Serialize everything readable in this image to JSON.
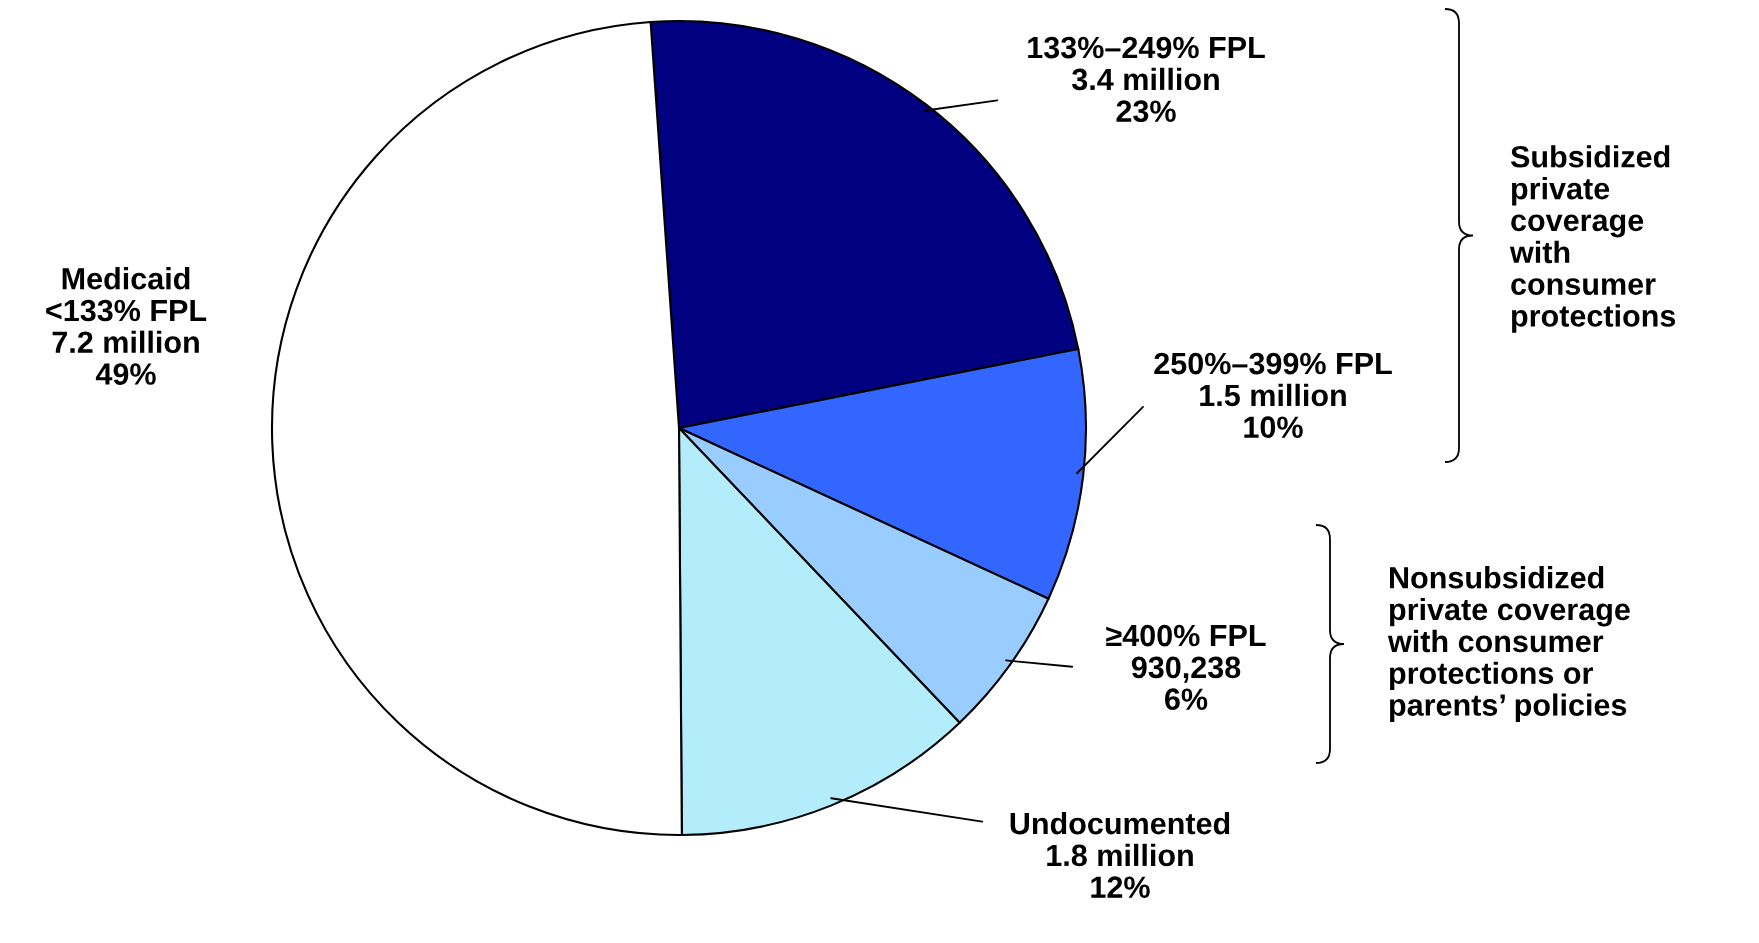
{
  "chart_data": {
    "type": "pie",
    "categories": [
      "133%–249% FPL",
      "250%–399% FPL",
      "≥400% FPL",
      "Undocumented",
      "Medicaid\n<133% FPL"
    ],
    "values": [
      23,
      10,
      6,
      12,
      49
    ],
    "colors": [
      "#000080",
      "#3366ff",
      "#99ccff",
      "#b3ecfa",
      "#ffffff"
    ],
    "value_labels": [
      "3.4 million\n23%",
      "1.5 million\n10%",
      "930,238\n6%",
      "1.8 million\n12%",
      "7.2 million\n49%"
    ],
    "annotations": [
      "Subsidized\nprivate\ncoverage\nwith\nconsumer\nprotections",
      "Nonsubsidized\nprivate coverage\nwith consumer\nprotections or\nparents’ policies"
    ]
  }
}
